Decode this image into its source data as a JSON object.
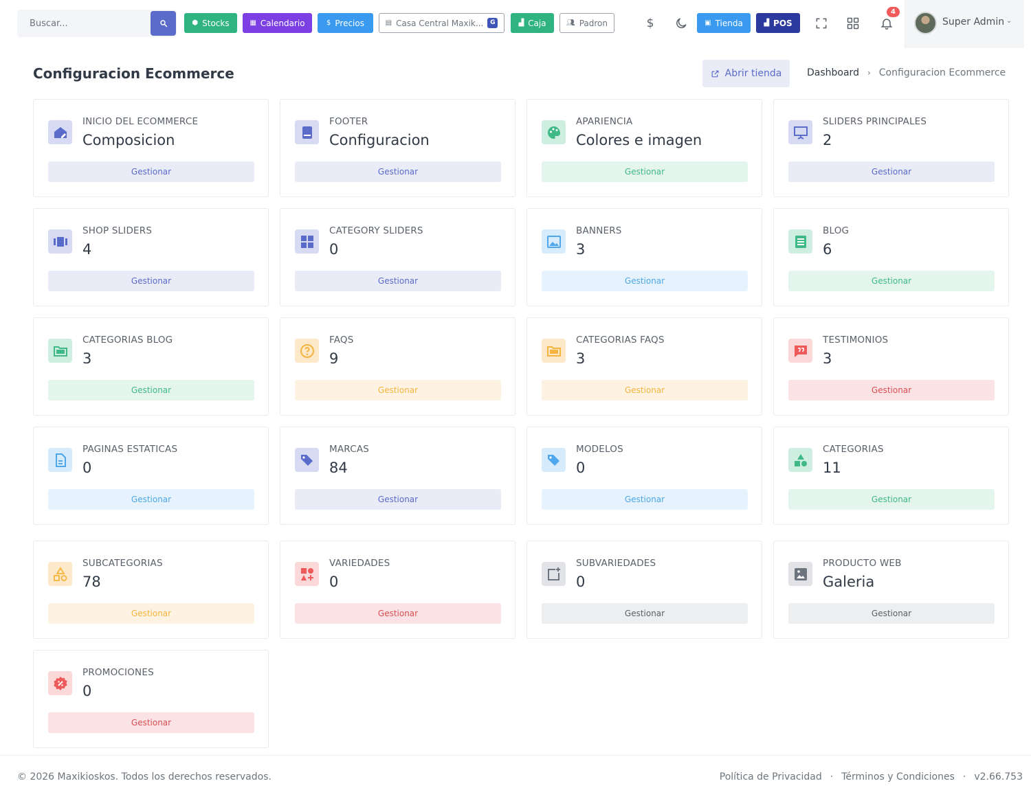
{
  "topbar": {
    "search_placeholder": "Buscar...",
    "quick_buttons": {
      "stocks": "Stocks",
      "calendario": "Calendario",
      "precios": "Precios",
      "sucursal": "Casa Central Maxik...",
      "sucursal_badge": "G",
      "caja": "Caja",
      "padron": "Padron",
      "tienda": "Tienda",
      "pos": "POS"
    },
    "notifications_count": "4",
    "user_name": "Super Admin"
  },
  "header": {
    "title": "Configuracion Ecommerce",
    "open_store_label": "Abrir tienda",
    "breadcrumb": {
      "home": "Dashboard",
      "current": "Configuracion Ecommerce"
    }
  },
  "cards": [
    {
      "label": "INICIO DEL ECOMMERCE",
      "value": "Composicion",
      "button": "Gestionar",
      "color": "indigo",
      "icon": "home-edit-icon"
    },
    {
      "label": "FOOTER",
      "value": "Configuracion",
      "button": "Gestionar",
      "color": "indigo",
      "icon": "book-icon"
    },
    {
      "label": "APARIENCIA",
      "value": "Colores e imagen",
      "button": "Gestionar",
      "color": "green",
      "icon": "palette-icon"
    },
    {
      "label": "SLIDERS PRINCIPALES",
      "value": "2",
      "button": "Gestionar",
      "color": "indigo",
      "icon": "presentation-icon"
    },
    {
      "label": "SHOP SLIDERS",
      "value": "4",
      "button": "Gestionar",
      "color": "indigo",
      "icon": "carousel-icon"
    },
    {
      "label": "CATEGORY SLIDERS",
      "value": "0",
      "button": "Gestionar",
      "color": "indigo",
      "icon": "grid-icon"
    },
    {
      "label": "BANNERS",
      "value": "3",
      "button": "Gestionar",
      "color": "blue",
      "icon": "image-icon"
    },
    {
      "label": "BLOG",
      "value": "6",
      "button": "Gestionar",
      "color": "green",
      "icon": "article-icon"
    },
    {
      "label": "CATEGORIAS BLOG",
      "value": "3",
      "button": "Gestionar",
      "color": "green",
      "icon": "folders-icon"
    },
    {
      "label": "FAQS",
      "value": "9",
      "button": "Gestionar",
      "color": "orange",
      "icon": "question-icon"
    },
    {
      "label": "CATEGORIAS FAQS",
      "value": "3",
      "button": "Gestionar",
      "color": "orange",
      "icon": "folders-icon"
    },
    {
      "label": "TESTIMONIOS",
      "value": "3",
      "button": "Gestionar",
      "color": "red",
      "icon": "quote-icon"
    },
    {
      "label": "PAGINAS ESTATICAS",
      "value": "0",
      "button": "Gestionar",
      "color": "blue",
      "icon": "document-icon"
    },
    {
      "label": "MARCAS",
      "value": "84",
      "button": "Gestionar",
      "color": "indigo",
      "icon": "tags-icon"
    },
    {
      "label": "MODELOS",
      "value": "0",
      "button": "Gestionar",
      "color": "blue",
      "icon": "tags-icon"
    },
    {
      "label": "CATEGORIAS",
      "value": "11",
      "button": "Gestionar",
      "color": "green",
      "icon": "shapes-icon"
    },
    {
      "label": "SUBCATEGORIAS",
      "value": "78",
      "button": "Gestionar",
      "color": "orange",
      "icon": "shapes-outline-icon"
    },
    {
      "label": "VARIEDADES",
      "value": "0",
      "button": "Gestionar",
      "color": "red",
      "icon": "shapes-plus-icon"
    },
    {
      "label": "SUBVARIEDADES",
      "value": "0",
      "button": "Gestionar",
      "color": "gray",
      "icon": "square-plus-icon"
    },
    {
      "label": "PRODUCTO WEB",
      "value": "Galeria",
      "button": "Gestionar",
      "color": "gray",
      "icon": "photo-icon"
    },
    {
      "label": "PROMOCIONES",
      "value": "0",
      "button": "Gestionar",
      "color": "red",
      "icon": "discount-badge-icon"
    }
  ],
  "footer": {
    "copyright": "© 2026 Maxikioskos. Todos los derechos reservados.",
    "privacy": "Política de Privacidad",
    "dot1": "·",
    "terms": "Términos y Condiciones",
    "dot2": "·",
    "version": "v2.66.753"
  },
  "colors": {
    "indigo": "#5b6bc9",
    "green": "#3fb985",
    "blue": "#4ea7ea",
    "orange": "#f5b43d",
    "red": "#ee5a5a",
    "gray": "#6c757d",
    "stocks_button": "#2fb380",
    "calendario_button": "#7b3fe4",
    "precios_button": "#3a9af0",
    "caja_button": "#2fb380",
    "tienda_button": "#3a9af0",
    "pos_button": "#2b3a9c"
  }
}
